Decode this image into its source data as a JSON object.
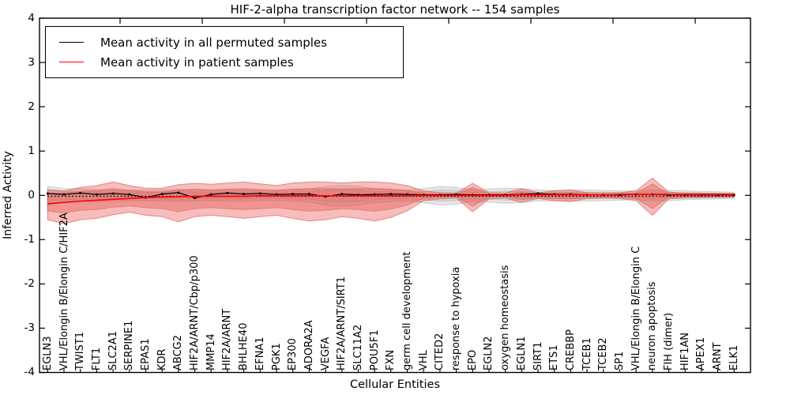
{
  "figure": {
    "title": "HIF-2-alpha transcription factor network -- 154 samples",
    "xlabel": "Cellular Entities",
    "ylabel": "Inferred Activity"
  },
  "legend": {
    "entries": [
      {
        "label": "Mean activity in all permuted samples",
        "color": "#000000"
      },
      {
        "label": "Mean activity in patient samples",
        "color": "#ff0000"
      }
    ]
  },
  "chart_data": {
    "type": "line",
    "title": "HIF-2-alpha transcription factor network -- 154 samples",
    "xlabel": "Cellular Entities",
    "ylabel": "Inferred Activity",
    "ylim": [
      -4,
      4
    ],
    "yticks": [
      -4,
      -3,
      -2,
      -1,
      0,
      1,
      2,
      3,
      4
    ],
    "grid": false,
    "legend_position": "upper left",
    "samples_label": "154 samples",
    "categories": [
      "EGLN3",
      "VHL/Elongin B/Elongin C/HIF2A",
      "TWIST1",
      "FLT1",
      "SLC2A1",
      "SERPINE1",
      "EPAS1",
      "KDR",
      "ABCG2",
      "HIF2A/ARNT/Cbp/p300",
      "MMP14",
      "HIF2A/ARNT",
      "BHLHE40",
      "EFNA1",
      "PGK1",
      "EP300",
      "ADORA2A",
      "VEGFA",
      "HIF2A/ARNT/SIRT1",
      "SLC11A2",
      "POU5F1",
      "FXN",
      "germ cell development",
      "VHL",
      "CITED2",
      "response to hypoxia",
      "EPO",
      "EGLN2",
      "oxygen homeostasis",
      "EGLN1",
      "SIRT1",
      "ETS1",
      "CREBBP",
      "TCEB1",
      "TCEB2",
      "SP1",
      "VHL/Elongin B/Elongin C",
      "neuron apoptosis",
      "FIH (dimer)",
      "HIF1AN",
      "APEX1",
      "ARNT",
      "ELK1"
    ],
    "series": [
      {
        "name": "Mean activity in all permuted samples",
        "color": "#000000",
        "style": "solid_markers",
        "values": [
          0.04,
          0.02,
          0.05,
          0.02,
          0.04,
          0.02,
          -0.05,
          0.03,
          0.06,
          -0.06,
          0.02,
          0.05,
          0.03,
          0.04,
          0.02,
          0.03,
          0.03,
          -0.03,
          0.03,
          0.01,
          0.02,
          0.03,
          0.02,
          0.01,
          0.01,
          0.02,
          0.01,
          0.01,
          0.01,
          0.02,
          0.04,
          0.02,
          0.02,
          0.01,
          0.01,
          0.01,
          0.02,
          0.02,
          0.01,
          0.01,
          0.01,
          0.01,
          0.01
        ]
      },
      {
        "name": "permuted baseline (dotted line near 0)",
        "color": "#000000",
        "style": "dotted",
        "values": [
          -0.02,
          -0.02,
          -0.02,
          -0.02,
          -0.02,
          -0.02,
          -0.02,
          -0.02,
          -0.02,
          -0.02,
          -0.02,
          -0.02,
          -0.02,
          -0.02,
          -0.02,
          -0.02,
          -0.02,
          -0.02,
          -0.02,
          -0.02,
          -0.02,
          -0.02,
          -0.02,
          -0.02,
          -0.02,
          -0.02,
          -0.02,
          -0.02,
          -0.02,
          -0.02,
          -0.02,
          -0.02,
          -0.02,
          -0.02,
          -0.02,
          -0.02,
          -0.02,
          -0.02,
          -0.02,
          -0.02,
          -0.02,
          -0.02,
          -0.02
        ]
      },
      {
        "name": "Mean activity in patient samples",
        "color": "#ff0000",
        "style": "solid",
        "values": [
          -0.19,
          -0.16,
          -0.13,
          -0.11,
          -0.09,
          -0.07,
          -0.05,
          -0.04,
          -0.03,
          -0.02,
          -0.02,
          -0.02,
          -0.02,
          -0.01,
          -0.01,
          -0.01,
          -0.01,
          -0.01,
          -0.01,
          -0.01,
          -0.01,
          -0.01,
          -0.01,
          0.0,
          0.0,
          0.0,
          0.0,
          0.0,
          0.0,
          0.01,
          0.01,
          0.01,
          0.01,
          0.01,
          0.01,
          0.02,
          0.02,
          0.02,
          0.02,
          0.02,
          0.02,
          0.02,
          0.02
        ]
      }
    ],
    "bands": [
      {
        "name": "permuted-range-outer",
        "fill": "#aaaaaa",
        "fill_opacity": 0.28,
        "stroke": "#999999",
        "stroke_opacity": 0.45,
        "hi": [
          0.2,
          0.15,
          0.14,
          0.13,
          0.12,
          0.12,
          0.12,
          0.12,
          0.13,
          0.12,
          0.12,
          0.12,
          0.12,
          0.12,
          0.12,
          0.13,
          0.14,
          0.2,
          0.22,
          0.2,
          0.15,
          0.13,
          0.12,
          0.15,
          0.2,
          0.18,
          0.12,
          0.14,
          0.16,
          0.15,
          0.12,
          0.11,
          0.12,
          0.12,
          0.11,
          0.1,
          0.1,
          0.12,
          0.11,
          0.1,
          0.09,
          0.08,
          0.07
        ],
        "lo": [
          -0.22,
          -0.16,
          -0.15,
          -0.14,
          -0.13,
          -0.12,
          -0.13,
          -0.13,
          -0.14,
          -0.13,
          -0.12,
          -0.13,
          -0.13,
          -0.12,
          -0.12,
          -0.13,
          -0.15,
          -0.22,
          -0.25,
          -0.22,
          -0.16,
          -0.14,
          -0.13,
          -0.16,
          -0.22,
          -0.2,
          -0.13,
          -0.15,
          -0.18,
          -0.16,
          -0.13,
          -0.12,
          -0.13,
          -0.13,
          -0.12,
          -0.11,
          -0.1,
          -0.13,
          -0.12,
          -0.1,
          -0.09,
          -0.08,
          -0.07
        ]
      },
      {
        "name": "permuted-range-inner",
        "fill": "#aaaaaa",
        "fill_opacity": 0.28,
        "stroke": "#999999",
        "stroke_opacity": 0.35,
        "hi": [
          0.12,
          0.09,
          0.08,
          0.08,
          0.07,
          0.07,
          0.07,
          0.07,
          0.08,
          0.07,
          0.07,
          0.07,
          0.07,
          0.07,
          0.07,
          0.08,
          0.08,
          0.12,
          0.13,
          0.12,
          0.09,
          0.08,
          0.07,
          0.09,
          0.12,
          0.11,
          0.07,
          0.08,
          0.1,
          0.09,
          0.07,
          0.07,
          0.07,
          0.07,
          0.07,
          0.06,
          0.06,
          0.07,
          0.07,
          0.06,
          0.05,
          0.05,
          0.04
        ],
        "lo": [
          -0.13,
          -0.1,
          -0.09,
          -0.08,
          -0.08,
          -0.07,
          -0.08,
          -0.08,
          -0.08,
          -0.08,
          -0.07,
          -0.08,
          -0.08,
          -0.07,
          -0.07,
          -0.08,
          -0.09,
          -0.13,
          -0.15,
          -0.13,
          -0.1,
          -0.08,
          -0.08,
          -0.1,
          -0.13,
          -0.12,
          -0.08,
          -0.09,
          -0.11,
          -0.1,
          -0.08,
          -0.07,
          -0.08,
          -0.08,
          -0.07,
          -0.07,
          -0.06,
          -0.08,
          -0.07,
          -0.06,
          -0.05,
          -0.05,
          -0.04
        ]
      },
      {
        "name": "patient-range-outer",
        "fill": "#e8514c",
        "fill_opacity": 0.38,
        "stroke": "#d94f4a",
        "stroke_opacity": 0.6,
        "hi": [
          0.13,
          0.1,
          0.18,
          0.22,
          0.3,
          0.22,
          0.16,
          0.16,
          0.24,
          0.27,
          0.25,
          0.28,
          0.3,
          0.26,
          0.22,
          0.28,
          0.3,
          0.3,
          0.28,
          0.3,
          0.3,
          0.28,
          0.22,
          0.1,
          0.06,
          0.05,
          0.27,
          0.06,
          0.05,
          0.15,
          0.06,
          0.1,
          0.12,
          0.06,
          0.05,
          0.06,
          0.1,
          0.39,
          0.07,
          0.05,
          0.05,
          0.04,
          0.04
        ],
        "lo": [
          -0.55,
          -0.64,
          -0.55,
          -0.52,
          -0.44,
          -0.38,
          -0.45,
          -0.48,
          -0.6,
          -0.48,
          -0.45,
          -0.48,
          -0.52,
          -0.48,
          -0.45,
          -0.52,
          -0.58,
          -0.55,
          -0.48,
          -0.52,
          -0.58,
          -0.5,
          -0.35,
          -0.12,
          -0.08,
          -0.06,
          -0.37,
          -0.08,
          -0.06,
          -0.16,
          -0.07,
          -0.12,
          -0.14,
          -0.07,
          -0.06,
          -0.07,
          -0.12,
          -0.45,
          -0.08,
          -0.06,
          -0.05,
          -0.04,
          -0.04
        ]
      },
      {
        "name": "patient-range-inner",
        "fill": "#e8514c",
        "fill_opacity": 0.38,
        "stroke": "#d94f4a",
        "stroke_opacity": 0.45,
        "hi": [
          0.06,
          0.05,
          0.09,
          0.11,
          0.15,
          0.11,
          0.08,
          0.08,
          0.12,
          0.14,
          0.12,
          0.14,
          0.15,
          0.13,
          0.11,
          0.14,
          0.15,
          0.15,
          0.14,
          0.15,
          0.15,
          0.14,
          0.11,
          0.05,
          0.03,
          0.02,
          0.18,
          0.03,
          0.02,
          0.08,
          0.03,
          0.05,
          0.06,
          0.03,
          0.02,
          0.03,
          0.05,
          0.26,
          0.03,
          0.02,
          0.02,
          0.02,
          0.02
        ],
        "lo": [
          -0.35,
          -0.4,
          -0.34,
          -0.32,
          -0.27,
          -0.24,
          -0.28,
          -0.3,
          -0.37,
          -0.3,
          -0.28,
          -0.3,
          -0.32,
          -0.3,
          -0.28,
          -0.32,
          -0.36,
          -0.34,
          -0.3,
          -0.32,
          -0.36,
          -0.31,
          -0.22,
          -0.07,
          -0.04,
          -0.03,
          -0.25,
          -0.04,
          -0.03,
          -0.09,
          -0.04,
          -0.07,
          -0.08,
          -0.04,
          -0.03,
          -0.04,
          -0.07,
          -0.3,
          -0.04,
          -0.03,
          -0.03,
          -0.02,
          -0.02
        ]
      }
    ]
  }
}
